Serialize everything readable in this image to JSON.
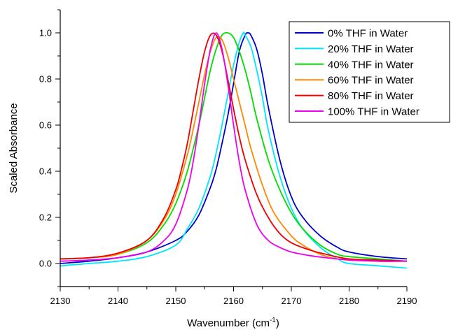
{
  "chart_data": {
    "type": "line",
    "title": "",
    "xlabel_main": "Wavenumber (cm",
    "xlabel_sup": "-1",
    "xlabel_close": ")",
    "ylabel": "Scaled Absorbance",
    "xlim": [
      2130,
      2190
    ],
    "ylim": [
      -0.1,
      1.1
    ],
    "x_ticks": [
      2130,
      2140,
      2150,
      2160,
      2170,
      2180,
      2190
    ],
    "y_ticks": [
      0.0,
      0.2,
      0.4,
      0.6,
      0.8,
      1.0
    ],
    "x_tick_labels": [
      "2130",
      "2140",
      "2150",
      "2160",
      "2170",
      "2180",
      "2190"
    ],
    "y_tick_labels": [
      "0.0",
      "0.2",
      "0.4",
      "0.6",
      "0.8",
      "1.0"
    ],
    "grid": false,
    "legend_position": "top-right",
    "series": [
      {
        "name": "0% THF in Water",
        "color": "#0000cc",
        "x": [
          2130,
          2135,
          2140,
          2145,
          2150,
          2152,
          2154,
          2156,
          2157,
          2158,
          2159,
          2160,
          2161,
          2162,
          2162.5,
          2163,
          2164,
          2165,
          2166,
          2168,
          2170,
          2172,
          2175,
          2178,
          2180,
          2185,
          2190
        ],
        "y": [
          0.0,
          0.01,
          0.025,
          0.05,
          0.1,
          0.14,
          0.21,
          0.33,
          0.41,
          0.52,
          0.64,
          0.78,
          0.92,
          0.99,
          1.0,
          0.99,
          0.93,
          0.82,
          0.68,
          0.45,
          0.29,
          0.2,
          0.12,
          0.07,
          0.05,
          0.03,
          0.02
        ]
      },
      {
        "name": "20% THF in Water",
        "color": "#00e5ff",
        "x": [
          2130,
          2135,
          2140,
          2145,
          2150,
          2152,
          2154,
          2156,
          2157,
          2158,
          2159,
          2160,
          2161,
          2161.7,
          2162,
          2163,
          2164,
          2165,
          2166,
          2168,
          2170,
          2172,
          2175,
          2178,
          2180,
          2185,
          2190
        ],
        "y": [
          -0.01,
          0.0,
          0.01,
          0.03,
          0.08,
          0.15,
          0.24,
          0.38,
          0.48,
          0.6,
          0.73,
          0.86,
          0.96,
          1.0,
          0.99,
          0.94,
          0.84,
          0.72,
          0.58,
          0.38,
          0.24,
          0.15,
          0.07,
          0.02,
          0.0,
          -0.01,
          -0.02
        ]
      },
      {
        "name": "40% THF in Water",
        "color": "#00dd00",
        "x": [
          2130,
          2135,
          2140,
          2145,
          2148,
          2150,
          2152,
          2154,
          2155,
          2156,
          2157,
          2158,
          2159,
          2160,
          2161,
          2162,
          2163,
          2164,
          2166,
          2168,
          2170,
          2172,
          2175,
          2178,
          2180,
          2185,
          2190
        ],
        "y": [
          0.02,
          0.025,
          0.04,
          0.09,
          0.17,
          0.26,
          0.4,
          0.6,
          0.72,
          0.84,
          0.93,
          0.99,
          1.0,
          0.98,
          0.92,
          0.84,
          0.74,
          0.63,
          0.45,
          0.32,
          0.22,
          0.15,
          0.08,
          0.04,
          0.03,
          0.02,
          0.01
        ]
      },
      {
        "name": "60% THF in Water",
        "color": "#ff8800",
        "x": [
          2130,
          2135,
          2140,
          2145,
          2148,
          2150,
          2152,
          2153,
          2154,
          2155,
          2156,
          2157,
          2158,
          2159,
          2160,
          2161,
          2162,
          2163,
          2165,
          2167,
          2170,
          2172,
          2175,
          2178,
          2180,
          2185,
          2190
        ],
        "y": [
          0.02,
          0.025,
          0.04,
          0.1,
          0.19,
          0.3,
          0.47,
          0.58,
          0.7,
          0.82,
          0.92,
          0.98,
          0.97,
          0.9,
          0.8,
          0.7,
          0.6,
          0.5,
          0.34,
          0.22,
          0.12,
          0.08,
          0.04,
          0.02,
          0.02,
          0.01,
          0.01
        ]
      },
      {
        "name": "80% THF in Water",
        "color": "#ee0000",
        "x": [
          2130,
          2135,
          2140,
          2145,
          2148,
          2150,
          2151,
          2152,
          2153,
          2154,
          2155,
          2156,
          2157,
          2158,
          2159,
          2160,
          2161,
          2162,
          2164,
          2166,
          2168,
          2170,
          2173,
          2176,
          2180,
          2185,
          2190
        ],
        "y": [
          0.02,
          0.025,
          0.045,
          0.1,
          0.2,
          0.32,
          0.41,
          0.52,
          0.66,
          0.8,
          0.92,
          0.99,
          0.99,
          0.92,
          0.8,
          0.67,
          0.55,
          0.45,
          0.3,
          0.2,
          0.13,
          0.09,
          0.06,
          0.04,
          0.02,
          0.015,
          0.01
        ]
      },
      {
        "name": "100% THF in Water",
        "color": "#ee00ee",
        "x": [
          2130,
          2135,
          2140,
          2145,
          2148,
          2150,
          2152,
          2153,
          2154,
          2155,
          2156,
          2157,
          2158,
          2159,
          2160,
          2161,
          2162,
          2164,
          2166,
          2168,
          2170,
          2173,
          2176,
          2180,
          2185,
          2190
        ],
        "y": [
          0.01,
          0.015,
          0.025,
          0.05,
          0.1,
          0.17,
          0.32,
          0.44,
          0.6,
          0.78,
          0.93,
          1.0,
          0.93,
          0.78,
          0.6,
          0.44,
          0.32,
          0.17,
          0.1,
          0.07,
          0.05,
          0.035,
          0.025,
          0.015,
          0.01,
          0.01
        ]
      }
    ]
  }
}
